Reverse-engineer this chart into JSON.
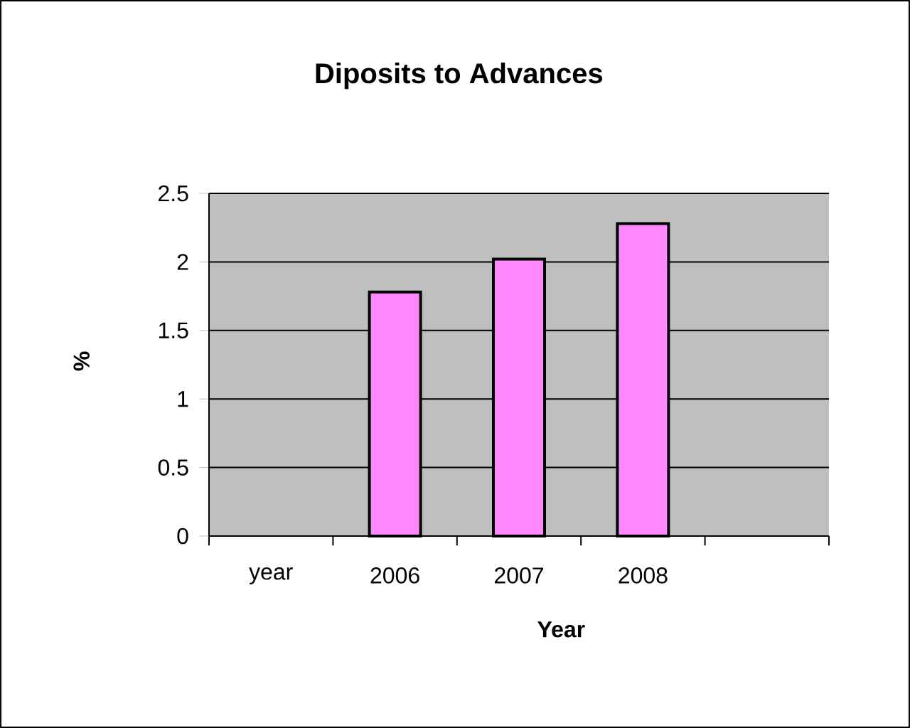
{
  "chart_data": {
    "type": "bar",
    "title": "Diposits to Advances",
    "xlabel": "Year",
    "ylabel": "%",
    "categories": [
      "year",
      "2006",
      "2007",
      "2008",
      null
    ],
    "values": [
      null,
      1.78,
      2.02,
      2.28,
      null
    ],
    "color": "#ff88ff",
    "ylim": [
      0,
      2.5
    ],
    "yticks": [
      0,
      0.5,
      1,
      1.5,
      2,
      2.5
    ],
    "grid": "y"
  }
}
